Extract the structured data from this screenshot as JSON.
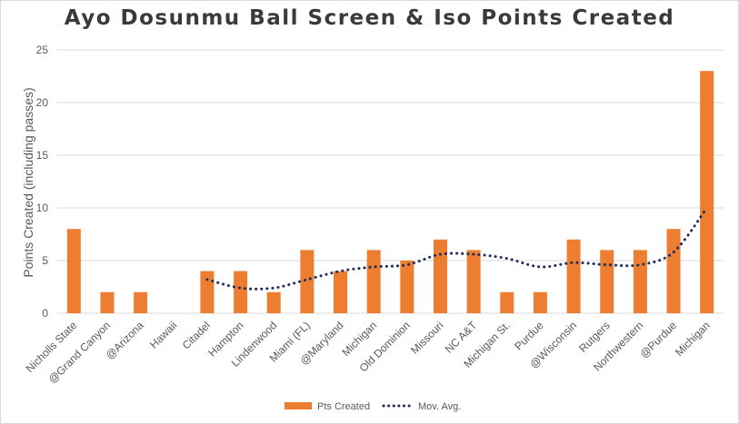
{
  "title": "Ayo Dosunmu Ball Screen & Iso Points Created",
  "colors": {
    "bar": "#ED7D31",
    "line": "#1F2D5C",
    "grid": "#D9D9D9"
  },
  "chart_data": {
    "type": "bar",
    "title": "Ayo Dosunmu Ball Screen & Iso Points Created",
    "xlabel": "",
    "ylabel": "Points Created (including passes)",
    "ylim": [
      0,
      25
    ],
    "yticks": [
      0,
      5,
      10,
      15,
      20,
      25
    ],
    "grid": true,
    "legend_position": "bottom",
    "categories": [
      "Nicholls State",
      "@Grand Canyon",
      "@Arizona",
      "Hawaii",
      "Citadel",
      "Hampton",
      "Lindenwood",
      "Miami (FL)",
      "@Maryland",
      "Michigan",
      "Old Dominion",
      "Missouri",
      "NC A&T",
      "Michigan St.",
      "Purdue",
      "@Wisconsin",
      "Rutgers",
      "Northwestern",
      "@Purdue",
      "Michigan"
    ],
    "series": [
      {
        "name": "Pts Created",
        "type": "bar",
        "values": [
          8,
          2,
          2,
          0,
          4,
          4,
          2,
          6,
          4,
          6,
          5,
          7,
          6,
          2,
          2,
          7,
          6,
          6,
          8,
          23
        ]
      },
      {
        "name": "Mov. Avg.",
        "type": "line",
        "style": "dotted",
        "values": [
          null,
          null,
          null,
          null,
          3.2,
          2.4,
          2.4,
          3.2,
          4.0,
          4.4,
          4.6,
          5.6,
          5.6,
          5.2,
          4.4,
          4.8,
          4.6,
          4.6,
          5.8,
          10.0
        ]
      }
    ]
  }
}
